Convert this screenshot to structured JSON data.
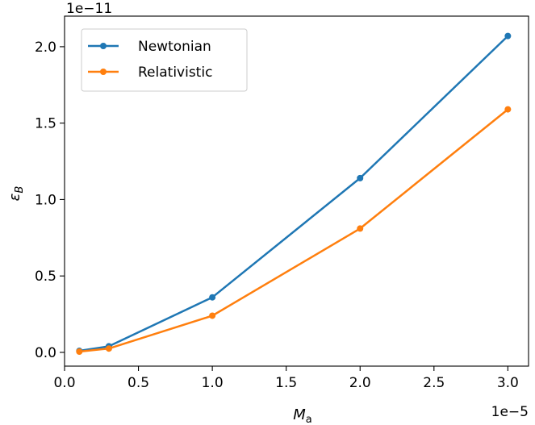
{
  "chart_data": {
    "type": "line",
    "xlabel_main": "M",
    "xlabel_sub": "a",
    "ylabel_main": "ε",
    "ylabel_sub": "B",
    "x_offset_text": "1e−5",
    "y_offset_text": "1e−11",
    "xlim": [
      0.0,
      3.14
    ],
    "ylim": [
      -0.09,
      2.2
    ],
    "x_ticks": [
      0.0,
      0.5,
      1.0,
      1.5,
      2.0,
      2.5,
      3.0
    ],
    "x_tick_labels": [
      "0.0",
      "0.5",
      "1.0",
      "1.5",
      "2.0",
      "2.5",
      "3.0"
    ],
    "y_ticks": [
      0.0,
      0.5,
      1.0,
      1.5,
      2.0
    ],
    "y_tick_labels": [
      "0.0",
      "0.5",
      "1.0",
      "1.5",
      "2.0"
    ],
    "x_unit_scale": "1e-5",
    "y_unit_scale": "1e-11",
    "grid": false,
    "legend_position": "top-left",
    "series": [
      {
        "name": "Newtonian",
        "color": "#1f77b4",
        "x": [
          0.1,
          0.3,
          1.0,
          2.0,
          3.0
        ],
        "y": [
          0.01,
          0.04,
          0.36,
          1.14,
          2.07
        ]
      },
      {
        "name": "Relativistic",
        "color": "#ff7f0e",
        "x": [
          0.1,
          0.3,
          1.0,
          2.0,
          3.0
        ],
        "y": [
          0.005,
          0.025,
          0.24,
          0.81,
          1.59
        ]
      }
    ]
  }
}
